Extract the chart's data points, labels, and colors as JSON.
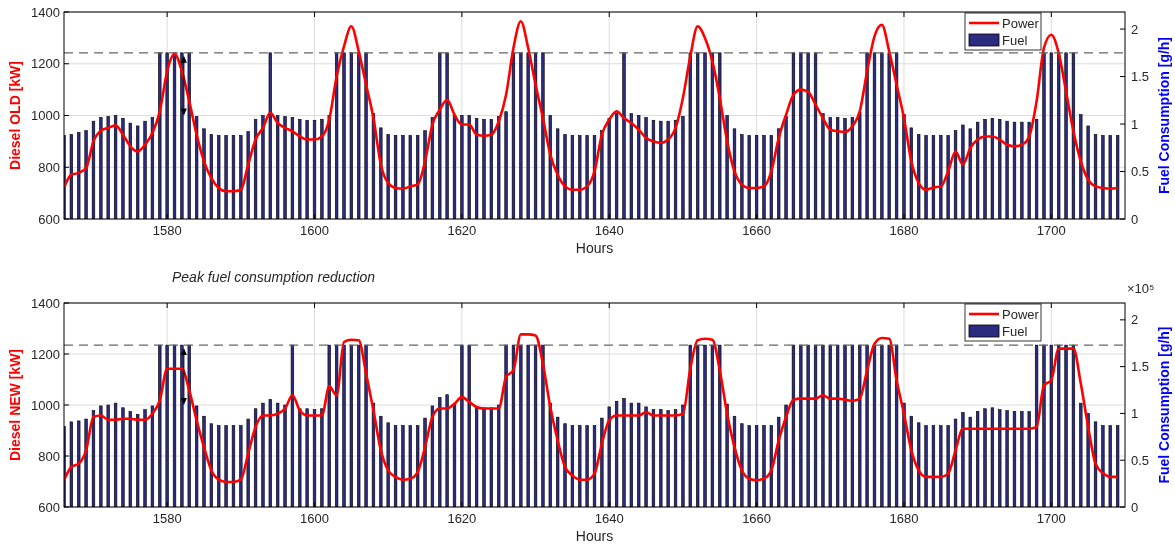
{
  "chart_data": [
    {
      "type": "bar",
      "xlabel": "Hours",
      "ylabel": "Diesel OLD [kW]",
      "y2label": "Fuel Consumption [g/h]",
      "x": [
        1566,
        1567,
        1568,
        1569,
        1570,
        1571,
        1572,
        1573,
        1574,
        1575,
        1576,
        1577,
        1578,
        1579,
        1580,
        1581,
        1582,
        1583,
        1584,
        1585,
        1586,
        1587,
        1588,
        1589,
        1590,
        1591,
        1592,
        1593,
        1594,
        1595,
        1596,
        1597,
        1598,
        1599,
        1600,
        1601,
        1602,
        1603,
        1604,
        1605,
        1606,
        1607,
        1608,
        1609,
        1610,
        1611,
        1612,
        1613,
        1614,
        1615,
        1616,
        1617,
        1618,
        1619,
        1620,
        1621,
        1622,
        1623,
        1624,
        1625,
        1626,
        1627,
        1628,
        1629,
        1630,
        1631,
        1632,
        1633,
        1634,
        1635,
        1636,
        1637,
        1638,
        1639,
        1640,
        1641,
        1642,
        1643,
        1644,
        1645,
        1646,
        1647,
        1648,
        1649,
        1650,
        1651,
        1652,
        1653,
        1654,
        1655,
        1656,
        1657,
        1658,
        1659,
        1660,
        1661,
        1662,
        1663,
        1664,
        1665,
        1666,
        1667,
        1668,
        1669,
        1670,
        1671,
        1672,
        1673,
        1674,
        1675,
        1676,
        1677,
        1678,
        1679,
        1680,
        1681,
        1682,
        1683,
        1684,
        1685,
        1686,
        1687,
        1688,
        1689,
        1690,
        1691,
        1692,
        1693,
        1694,
        1695,
        1696,
        1697,
        1698,
        1699,
        1700,
        1701,
        1702,
        1703,
        1704,
        1705,
        1706,
        1707,
        1708,
        1709
      ],
      "series": [
        {
          "name": "Fuel",
          "axis": "y2",
          "color": "#2b2b80",
          "values": [
            0.88,
            0.89,
            0.91,
            0.93,
            1.03,
            1.07,
            1.08,
            1.09,
            1.06,
            1.01,
            0.98,
            1.03,
            1.07,
            1.75,
            1.75,
            1.75,
            1.75,
            1.75,
            1.08,
            0.95,
            0.89,
            0.88,
            0.88,
            0.88,
            0.88,
            0.92,
            1.05,
            1.09,
            1.75,
            1.09,
            1.08,
            1.07,
            1.05,
            1.04,
            1.04,
            1.05,
            1.09,
            1.75,
            1.75,
            1.75,
            1.75,
            1.75,
            1.11,
            0.96,
            0.89,
            0.88,
            0.88,
            0.88,
            0.88,
            0.93,
            1.07,
            1.75,
            1.75,
            1.09,
            1.09,
            1.09,
            1.06,
            1.05,
            1.05,
            1.08,
            1.13,
            1.75,
            1.75,
            1.75,
            1.75,
            1.75,
            1.09,
            0.95,
            0.89,
            0.88,
            0.88,
            0.88,
            0.88,
            0.93,
            1.06,
            1.11,
            1.75,
            1.11,
            1.09,
            1.07,
            1.04,
            1.03,
            1.03,
            1.04,
            1.08,
            1.75,
            1.75,
            1.75,
            1.75,
            1.75,
            1.09,
            0.95,
            0.89,
            0.88,
            0.88,
            0.88,
            0.88,
            0.95,
            1.08,
            1.75,
            1.75,
            1.75,
            1.75,
            1.11,
            1.07,
            1.07,
            1.06,
            1.07,
            1.12,
            1.75,
            1.75,
            1.75,
            1.75,
            1.75,
            1.1,
            0.96,
            0.89,
            0.88,
            0.88,
            0.88,
            0.88,
            0.93,
            0.99,
            0.95,
            1.02,
            1.05,
            1.06,
            1.05,
            1.03,
            1.02,
            1.02,
            1.02,
            1.05,
            1.75,
            1.75,
            1.75,
            1.75,
            1.75,
            1.1,
            0.98,
            0.89,
            0.88,
            0.88,
            0.88
          ]
        },
        {
          "name": "Power",
          "type": "line",
          "color": "#ff0000",
          "values": [
            722,
            771,
            778,
            797,
            900,
            941,
            952,
            962,
            926,
            881,
            861,
            887,
            932,
            1016,
            1171,
            1238,
            1171,
            1055,
            926,
            823,
            758,
            720,
            707,
            707,
            713,
            810,
            907,
            952,
            1010,
            971,
            952,
            939,
            919,
            907,
            907,
            919,
            984,
            1151,
            1267,
            1345,
            1248,
            1119,
            990,
            810,
            739,
            720,
            717,
            726,
            733,
            823,
            965,
            1022,
            1061,
            1003,
            965,
            965,
            926,
            922,
            926,
            977,
            1080,
            1261,
            1364,
            1261,
            1119,
            990,
            849,
            771,
            726,
            713,
            713,
            726,
            784,
            926,
            984,
            1016,
            990,
            971,
            945,
            913,
            900,
            894,
            907,
            952,
            1068,
            1228,
            1345,
            1299,
            1209,
            1068,
            900,
            784,
            733,
            720,
            720,
            726,
            784,
            913,
            1003,
            1080,
            1100,
            1091,
            1042,
            990,
            945,
            939,
            936,
            958,
            1016,
            1171,
            1306,
            1351,
            1248,
            1119,
            990,
            823,
            739,
            713,
            722,
            726,
            784,
            861,
            810,
            874,
            907,
            919,
            919,
            907,
            887,
            881,
            887,
            919,
            1055,
            1261,
            1312,
            1241,
            1093,
            939,
            823,
            752,
            726,
            720,
            717,
            720
          ]
        }
      ],
      "xlim": [
        1566,
        1710
      ],
      "xticks": [
        1580,
        1600,
        1620,
        1640,
        1660,
        1680,
        1700
      ],
      "ylim": [
        600,
        1400
      ],
      "yticks": [
        600,
        800,
        1000,
        1200,
        1400
      ],
      "y2lim": [
        0,
        2.18
      ],
      "y2ticks": [
        0,
        0.5,
        1,
        1.5,
        2
      ],
      "ref_lines": [
        {
          "axis": "y2",
          "value": 1.75,
          "color": "#666666",
          "line_style": "dashed"
        }
      ],
      "grid": true,
      "legend": "top right"
    },
    {
      "type": "bar",
      "title": "Peak fuel consumption reduction",
      "xlabel": "Hours",
      "ylabel": "Diesel NEW [kW]",
      "y2label": "Fuel Consumption [g/h]",
      "annotations": [
        "×10⁵"
      ],
      "x": [
        1566,
        1567,
        1568,
        1569,
        1570,
        1571,
        1572,
        1573,
        1574,
        1575,
        1576,
        1577,
        1578,
        1579,
        1580,
        1581,
        1582,
        1583,
        1584,
        1585,
        1586,
        1587,
        1588,
        1589,
        1590,
        1591,
        1592,
        1593,
        1594,
        1595,
        1596,
        1597,
        1598,
        1599,
        1600,
        1601,
        1602,
        1603,
        1604,
        1605,
        1606,
        1607,
        1608,
        1609,
        1610,
        1611,
        1612,
        1613,
        1614,
        1615,
        1616,
        1617,
        1618,
        1619,
        1620,
        1621,
        1622,
        1623,
        1624,
        1625,
        1626,
        1627,
        1628,
        1629,
        1630,
        1631,
        1632,
        1633,
        1634,
        1635,
        1636,
        1637,
        1638,
        1639,
        1640,
        1641,
        1642,
        1643,
        1644,
        1645,
        1646,
        1647,
        1648,
        1649,
        1650,
        1651,
        1652,
        1653,
        1654,
        1655,
        1656,
        1657,
        1658,
        1659,
        1660,
        1661,
        1662,
        1663,
        1664,
        1665,
        1666,
        1667,
        1668,
        1669,
        1670,
        1671,
        1672,
        1673,
        1674,
        1675,
        1676,
        1677,
        1678,
        1679,
        1680,
        1681,
        1682,
        1683,
        1684,
        1685,
        1686,
        1687,
        1688,
        1689,
        1690,
        1691,
        1692,
        1693,
        1694,
        1695,
        1696,
        1697,
        1698,
        1699,
        1700,
        1701,
        1702,
        1703,
        1704,
        1705,
        1706,
        1707,
        1708,
        1709
      ],
      "series": [
        {
          "name": "Fuel",
          "axis": "y2",
          "color": "#2b2b80",
          "values": [
            0.86,
            0.91,
            0.92,
            0.94,
            1.03,
            1.08,
            1.09,
            1.11,
            1.06,
            1.02,
            0.99,
            1.04,
            1.08,
            1.73,
            1.73,
            1.73,
            1.73,
            1.73,
            1.08,
            0.97,
            0.89,
            0.87,
            0.87,
            0.87,
            0.87,
            0.94,
            1.05,
            1.11,
            1.15,
            1.11,
            1.09,
            1.73,
            1.05,
            1.05,
            1.04,
            1.05,
            1.73,
            1.73,
            1.73,
            1.73,
            1.73,
            1.73,
            1.11,
            0.97,
            0.9,
            0.87,
            0.87,
            0.87,
            0.87,
            0.95,
            1.08,
            1.17,
            1.2,
            1.11,
            1.73,
            1.73,
            1.07,
            1.06,
            1.06,
            1.09,
            1.73,
            1.73,
            1.73,
            1.73,
            1.73,
            1.73,
            1.11,
            0.96,
            0.89,
            0.87,
            0.87,
            0.87,
            0.87,
            0.95,
            1.07,
            1.13,
            1.16,
            1.11,
            1.11,
            1.07,
            1.04,
            1.04,
            1.03,
            1.04,
            1.09,
            1.73,
            1.73,
            1.73,
            1.73,
            1.73,
            1.1,
            0.97,
            0.89,
            0.87,
            0.87,
            0.87,
            0.87,
            0.96,
            1.09,
            1.73,
            1.73,
            1.73,
            1.73,
            1.73,
            1.73,
            1.73,
            1.73,
            1.73,
            1.73,
            1.73,
            1.73,
            1.73,
            1.73,
            1.73,
            1.11,
            0.97,
            0.9,
            0.87,
            0.87,
            0.87,
            0.87,
            0.94,
            1.01,
            0.96,
            1.02,
            1.05,
            1.06,
            1.04,
            1.03,
            1.02,
            1.02,
            1.02,
            1.73,
            1.73,
            1.73,
            1.73,
            1.73,
            1.73,
            1.11,
            1.0,
            0.91,
            0.87,
            0.87,
            0.87
          ]
        },
        {
          "name": "Power",
          "type": "line",
          "color": "#ff0000",
          "values": [
            705,
            757,
            770,
            822,
            953,
            959,
            942,
            942,
            946,
            946,
            942,
            942,
            966,
            1018,
            1142,
            1142,
            1142,
            1057,
            940,
            835,
            744,
            707,
            698,
            698,
            707,
            809,
            914,
            959,
            959,
            966,
            986,
            1038,
            979,
            959,
            959,
            959,
            1073,
            1038,
            1247,
            1256,
            1254,
            1123,
            979,
            822,
            744,
            718,
            707,
            711,
            737,
            835,
            953,
            986,
            986,
            1005,
            1031,
            1012,
            992,
            986,
            986,
            986,
            1110,
            1136,
            1277,
            1277,
            1273,
            1162,
            992,
            861,
            757,
            724,
            707,
            707,
            731,
            848,
            940,
            959,
            959,
            959,
            959,
            972,
            959,
            959,
            959,
            959,
            966,
            1142,
            1254,
            1260,
            1256,
            1136,
            966,
            835,
            744,
            711,
            705,
            711,
            744,
            861,
            953,
            1021,
            1025,
            1025,
            1025,
            1038,
            1025,
            1025,
            1021,
            1016,
            1025,
            1136,
            1240,
            1263,
            1260,
            1097,
            966,
            822,
            744,
            718,
            718,
            718,
            731,
            822,
            907,
            907,
            907,
            907,
            907,
            907,
            907,
            907,
            907,
            907,
            914,
            1077,
            1097,
            1221,
            1221,
            1221,
            1084,
            914,
            770,
            733,
            718,
            718
          ]
        }
      ],
      "xlim": [
        1566,
        1710
      ],
      "xticks": [
        1580,
        1600,
        1620,
        1640,
        1660,
        1680,
        1700
      ],
      "ylim": [
        600,
        1400
      ],
      "yticks": [
        600,
        800,
        1000,
        1200,
        1400
      ],
      "y2lim": [
        0,
        2.18
      ],
      "y2ticks": [
        0,
        0.5,
        1,
        1.5,
        2
      ],
      "ref_lines": [
        {
          "axis": "y2",
          "value": 1.73,
          "color": "#666666",
          "line_style": "dashed"
        }
      ],
      "grid": true,
      "legend": "top right"
    }
  ]
}
